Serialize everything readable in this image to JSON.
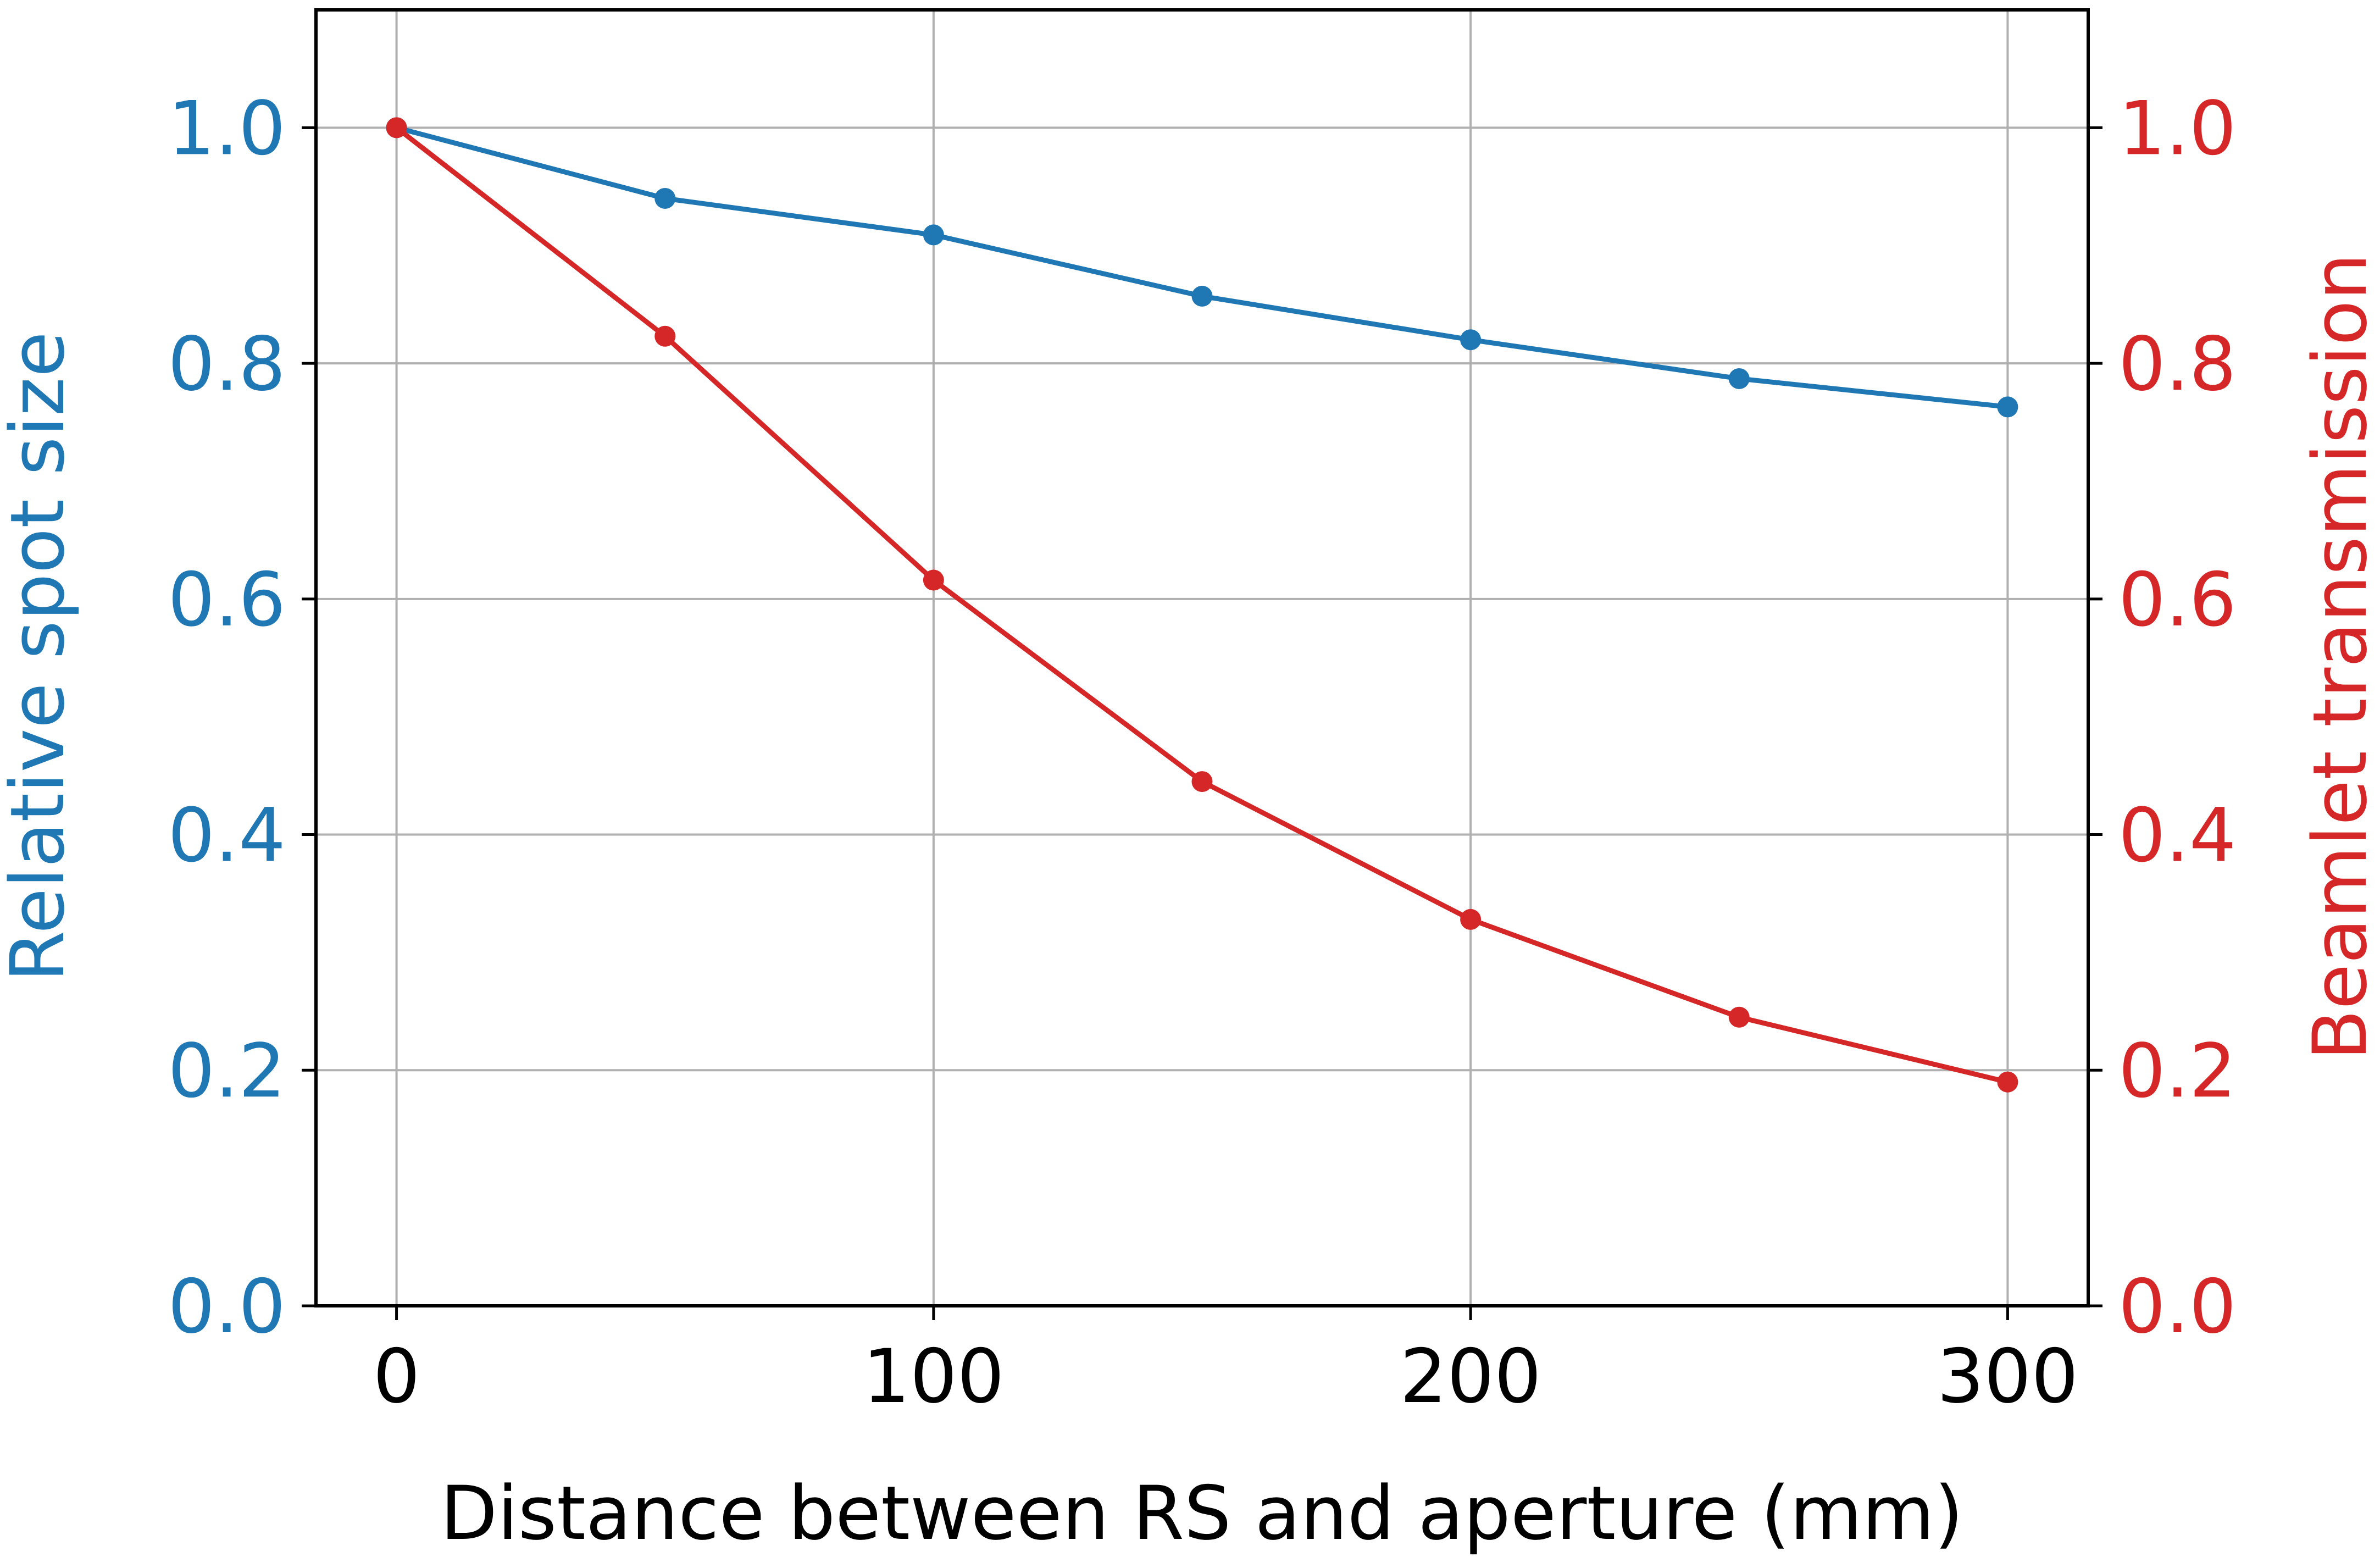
{
  "chart_data": {
    "type": "line",
    "title": "",
    "xlabel": "Distance between RS and aperture (mm)",
    "ylabel_left": "Relative spot size",
    "ylabel_right": "Beamlet transmission",
    "x": [
      0,
      50,
      100,
      150,
      200,
      250,
      300
    ],
    "xlim": [
      -15,
      315
    ],
    "ylim_left": [
      0,
      1.1
    ],
    "ylim_right": [
      0,
      1.1
    ],
    "x_ticks": [
      0,
      100,
      200,
      300
    ],
    "x_tick_labels": [
      "0",
      "100",
      "200",
      "300"
    ],
    "y_ticks": [
      0.0,
      0.2,
      0.4,
      0.6,
      0.8,
      1.0
    ],
    "y_tick_labels": [
      "0.0",
      "0.2",
      "0.4",
      "0.6",
      "0.8",
      "1.0"
    ],
    "grid": true,
    "series": [
      {
        "axis": "left",
        "color": "#1f77b4",
        "marker": "circle",
        "values": [
          1.0,
          0.94,
          0.909,
          0.857,
          0.82,
          0.787,
          0.763
        ]
      },
      {
        "axis": "right",
        "color": "#d62728",
        "marker": "circle",
        "values": [
          1.0,
          0.823,
          0.616,
          0.445,
          0.328,
          0.245,
          0.19
        ]
      }
    ]
  }
}
